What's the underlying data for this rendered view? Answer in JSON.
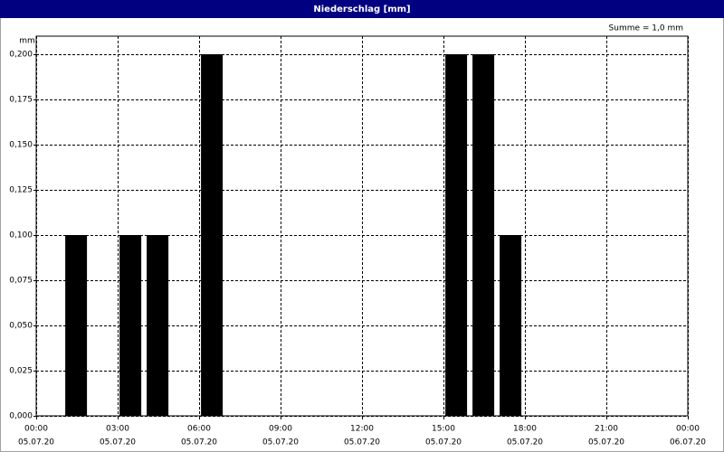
{
  "chart_data": {
    "type": "bar",
    "title": "Niederschlag [mm]",
    "y_unit": "mm",
    "annotation": "Summe = 1,0 mm",
    "x": [
      1,
      3,
      4,
      6,
      15,
      16,
      17
    ],
    "values": [
      0.1,
      0.1,
      0.1,
      0.2,
      0.2,
      0.2,
      0.1
    ],
    "color": "#000000",
    "xlim": [
      0,
      24
    ],
    "xticks": [
      {
        "value": 0,
        "label": "00:00"
      },
      {
        "value": 3,
        "label": "03:00"
      },
      {
        "value": 6,
        "label": "06:00"
      },
      {
        "value": 9,
        "label": "09:00"
      },
      {
        "value": 12,
        "label": "12:00"
      },
      {
        "value": 15,
        "label": "15:00"
      },
      {
        "value": 18,
        "label": "18:00"
      },
      {
        "value": 21,
        "label": "21:00"
      },
      {
        "value": 24,
        "label": "00:00"
      }
    ],
    "xtick_dates": [
      "05.07.20",
      "05.07.20",
      "05.07.20",
      "05.07.20",
      "05.07.20",
      "05.07.20",
      "05.07.20",
      "05.07.20",
      "06.07.20"
    ],
    "ylim": [
      0,
      0.21
    ],
    "yticks": [
      {
        "value": 0,
        "label": "0,000"
      },
      {
        "value": 0.025,
        "label": "0,025"
      },
      {
        "value": 0.05,
        "label": "0,050"
      },
      {
        "value": 0.075,
        "label": "0,075"
      },
      {
        "value": 0.1,
        "label": "0,100"
      },
      {
        "value": 0.125,
        "label": "0,125"
      },
      {
        "value": 0.15,
        "label": "0,150"
      },
      {
        "value": 0.175,
        "label": "0,175"
      },
      {
        "value": 0.2,
        "label": "0,200"
      }
    ],
    "grid": true
  }
}
